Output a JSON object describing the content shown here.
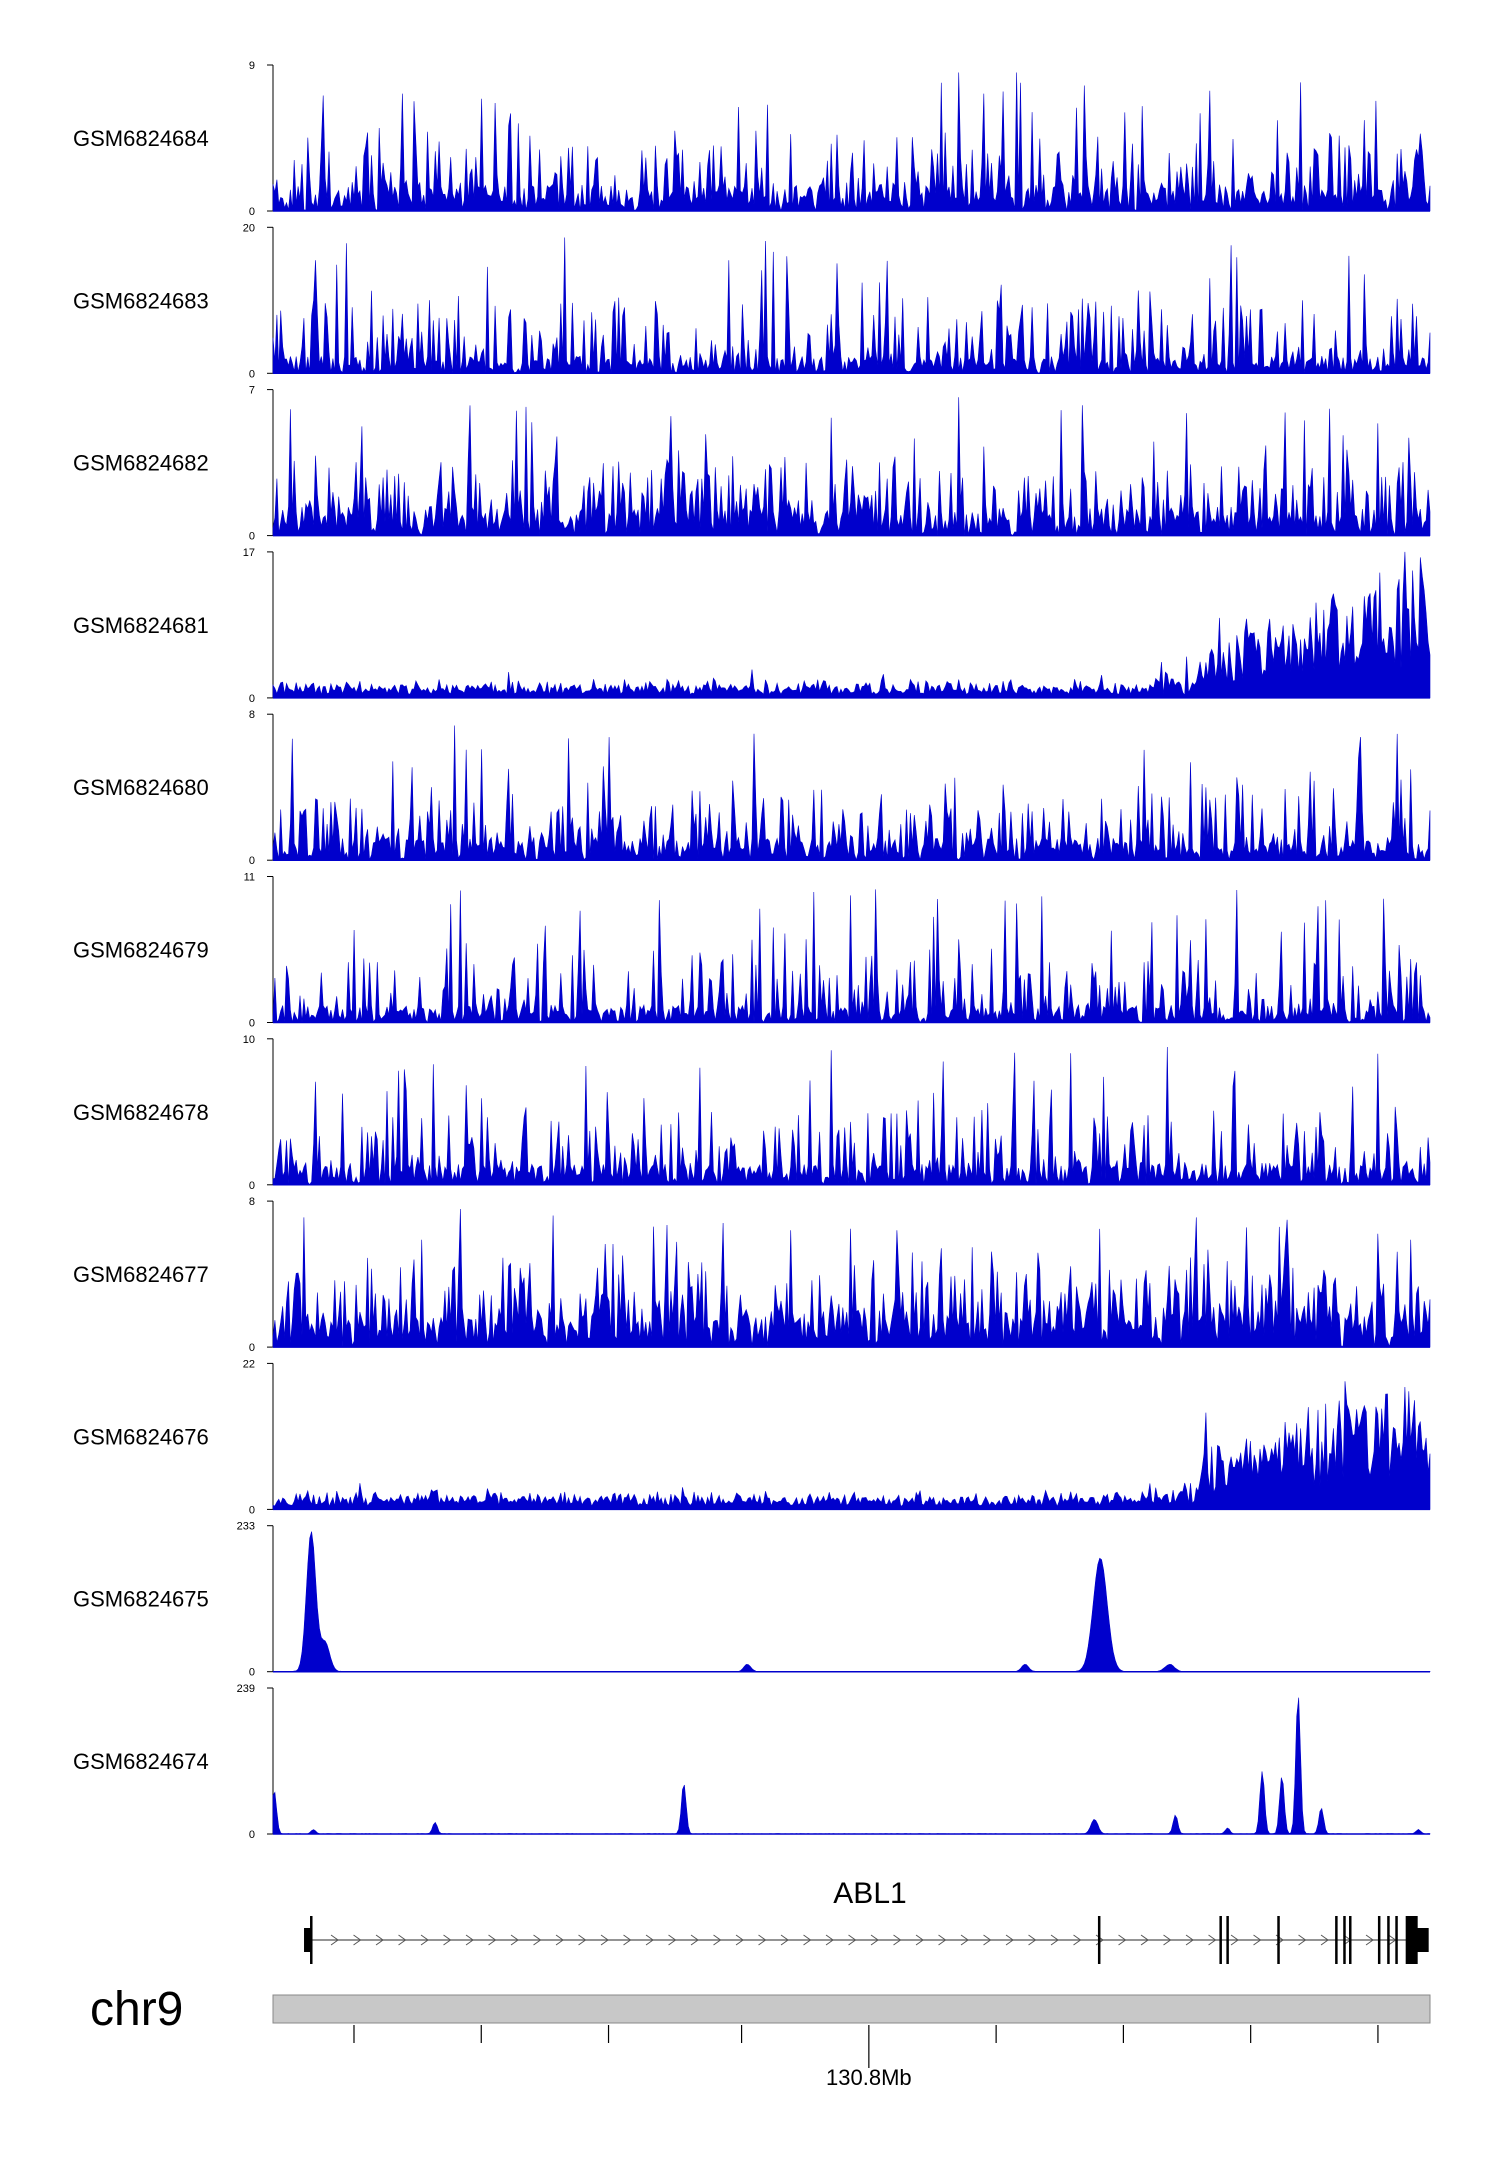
{
  "chart_data": {
    "type": "area",
    "title": "",
    "color": "#0000cc",
    "tracks": [
      {
        "name": "GSM6824684",
        "ymax": "9",
        "ymin": "0",
        "pattern": "noise",
        "max": 9,
        "base": 0.18,
        "density": 0.35,
        "seed": 11
      },
      {
        "name": "GSM6824683",
        "ymax": "20",
        "ymin": "0",
        "pattern": "sparse",
        "max": 20,
        "base": 0.12,
        "density": 0.32,
        "seed": 23
      },
      {
        "name": "GSM6824682",
        "ymax": "7",
        "ymin": "0",
        "pattern": "noise",
        "max": 7,
        "base": 0.2,
        "density": 0.4,
        "seed": 37
      },
      {
        "name": "GSM6824681",
        "ymax": "17",
        "ymin": "0",
        "pattern": "ramp",
        "max": 17,
        "base": 0.08,
        "density": 0.3,
        "seed": 41
      },
      {
        "name": "GSM6824680",
        "ymax": "8",
        "ymin": "0",
        "pattern": "noise",
        "max": 8,
        "base": 0.16,
        "density": 0.35,
        "seed": 53
      },
      {
        "name": "GSM6824679",
        "ymax": "11",
        "ymin": "0",
        "pattern": "noise",
        "max": 11,
        "base": 0.12,
        "density": 0.3,
        "seed": 67
      },
      {
        "name": "GSM6824678",
        "ymax": "10",
        "ymin": "0",
        "pattern": "noise",
        "max": 10,
        "base": 0.15,
        "density": 0.35,
        "seed": 71
      },
      {
        "name": "GSM6824677",
        "ymax": "8",
        "ymin": "0",
        "pattern": "noise",
        "max": 8,
        "base": 0.25,
        "density": 0.45,
        "seed": 83
      },
      {
        "name": "GSM6824676",
        "ymax": "22",
        "ymin": "0",
        "pattern": "ramp",
        "max": 22,
        "base": 0.07,
        "density": 0.3,
        "seed": 97
      },
      {
        "name": "GSM6824675",
        "ymax": "233",
        "ymin": "0",
        "pattern": "peaks",
        "max": 233,
        "base": 0.003,
        "density": 0.1,
        "seed": 101,
        "peaks": [
          [
            0.033,
            0.96,
            0.004
          ],
          [
            0.045,
            0.2,
            0.004
          ],
          [
            0.41,
            0.05,
            0.003
          ],
          [
            0.65,
            0.05,
            0.003
          ],
          [
            0.715,
            0.78,
            0.006
          ],
          [
            0.775,
            0.05,
            0.004
          ]
        ]
      },
      {
        "name": "GSM6824674",
        "ymax": "239",
        "ymin": "0",
        "pattern": "peaks",
        "max": 239,
        "base": 0.003,
        "density": 0.1,
        "seed": 113,
        "peaks": [
          [
            0.001,
            0.3,
            0.002
          ],
          [
            0.035,
            0.03,
            0.002
          ],
          [
            0.14,
            0.08,
            0.002
          ],
          [
            0.355,
            0.35,
            0.002
          ],
          [
            0.71,
            0.1,
            0.003
          ],
          [
            0.78,
            0.13,
            0.002
          ],
          [
            0.825,
            0.04,
            0.002
          ],
          [
            0.855,
            0.43,
            0.002
          ],
          [
            0.872,
            0.4,
            0.002
          ],
          [
            0.886,
            0.96,
            0.002
          ],
          [
            0.906,
            0.18,
            0.002
          ],
          [
            0.99,
            0.03,
            0.002
          ]
        ]
      }
    ],
    "gene": {
      "name": "ABL1",
      "start_frac": 0.032,
      "end_frac": 0.998,
      "exons_frac": [
        0.032,
        0.713,
        0.818,
        0.824,
        0.868,
        0.918,
        0.925,
        0.93,
        0.955,
        0.963,
        0.97
      ]
    },
    "chromosome": "chr9",
    "x_axis": {
      "tick_fracs": [
        0.07,
        0.18,
        0.29,
        0.405,
        0.515,
        0.625,
        0.735,
        0.845,
        0.955
      ],
      "labeled_tick_index": 4,
      "label": "130.8Mb"
    }
  }
}
